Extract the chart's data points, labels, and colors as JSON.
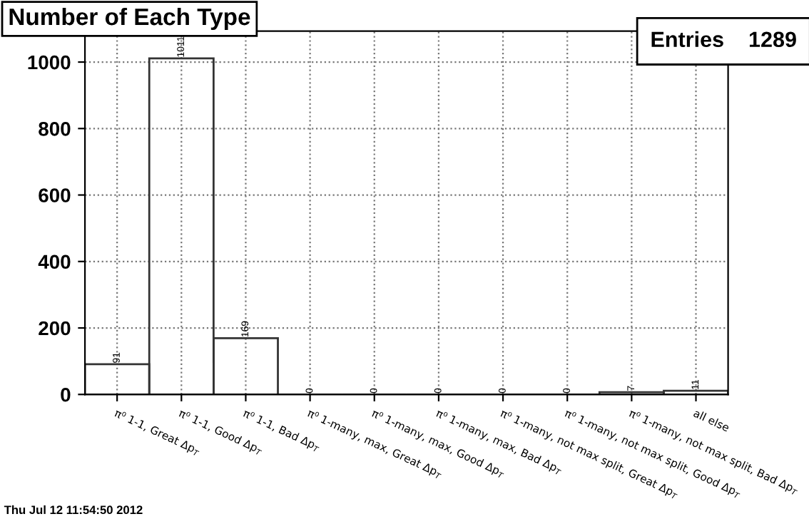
{
  "chart_data": {
    "type": "bar",
    "title": "Number of Each Type",
    "categories": [
      "π⁰ 1-1, Great Δp$_{T}$",
      "π⁰ 1-1, Good Δp$_{T}$",
      "π⁰ 1-1, Bad Δp$_{T}$",
      "π⁰ 1-many, max, Great Δp$_{T}$",
      "π⁰ 1-many, max, Good Δp$_{T}$",
      "π⁰ 1-many, max, Bad Δp$_{T}$",
      "π⁰ 1-many, not max split, Great Δp$_{T}$",
      "π⁰ 1-many, not max split, Good Δp$_{T}$",
      "π⁰ 1-many, not max split, Bad Δp$_{T}$",
      "all else"
    ],
    "values": [
      91,
      1011,
      169,
      0,
      0,
      0,
      0,
      0,
      7,
      11
    ],
    "color": "#333333",
    "ylim": [
      0,
      1093
    ],
    "yticks": [
      0,
      200,
      400,
      600,
      800,
      1000
    ],
    "grid": true,
    "data_labels": true,
    "annotations": [
      "Entries    1289",
      "Thu Jul 12 11:54:50 2012"
    ]
  }
}
